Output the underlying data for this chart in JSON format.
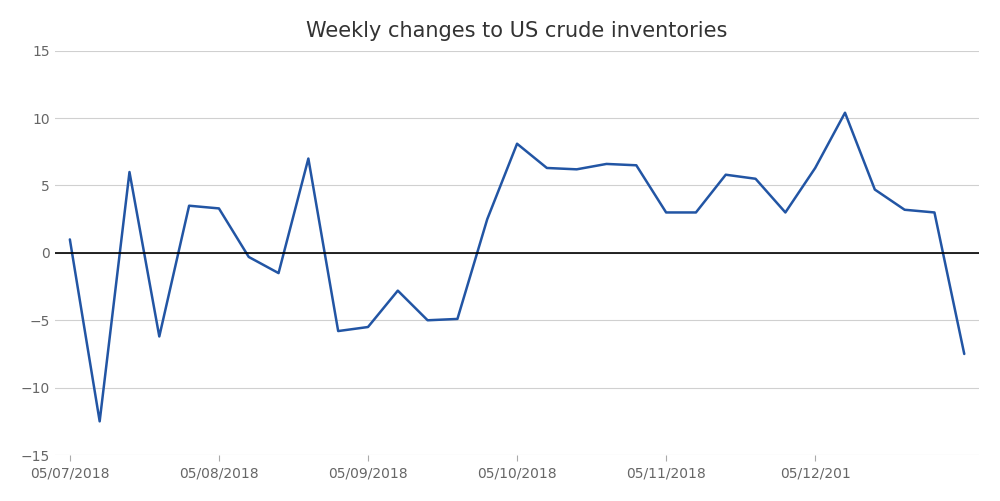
{
  "title": "Weekly changes to US crude inventories",
  "x_indices": [
    0,
    1,
    2,
    3,
    4,
    5,
    6,
    7,
    8,
    9,
    10,
    11,
    12,
    13,
    14,
    15,
    16,
    17,
    18,
    19,
    20,
    21,
    22,
    23,
    24,
    25,
    26,
    27,
    28,
    29,
    30
  ],
  "values": [
    1.0,
    -12.5,
    6.0,
    -6.2,
    3.5,
    3.3,
    -0.3,
    -1.5,
    7.0,
    -5.8,
    -5.5,
    -2.8,
    -5.0,
    -4.9,
    2.5,
    8.1,
    6.3,
    6.2,
    6.6,
    6.5,
    3.0,
    3.0,
    5.8,
    5.5,
    3.0,
    6.3,
    10.4,
    4.7,
    3.2,
    3.0,
    -7.5
  ],
  "line_color": "#2255a4",
  "background_color": "#ffffff",
  "grid_color": "#d0d0d0",
  "zero_line_color": "#000000",
  "ylim": [
    -15,
    15
  ],
  "yticks": [
    -15,
    -10,
    -5,
    0,
    5,
    10,
    15
  ],
  "xtick_positions": [
    0,
    5,
    10,
    15,
    20,
    25,
    30
  ],
  "xtick_labels": [
    "05/07/2018",
    "05/08/2018",
    "05/09/2018",
    "05/10/2018",
    "05/11/2018",
    "05/12/201",
    ""
  ],
  "title_fontsize": 15,
  "tick_fontsize": 10
}
